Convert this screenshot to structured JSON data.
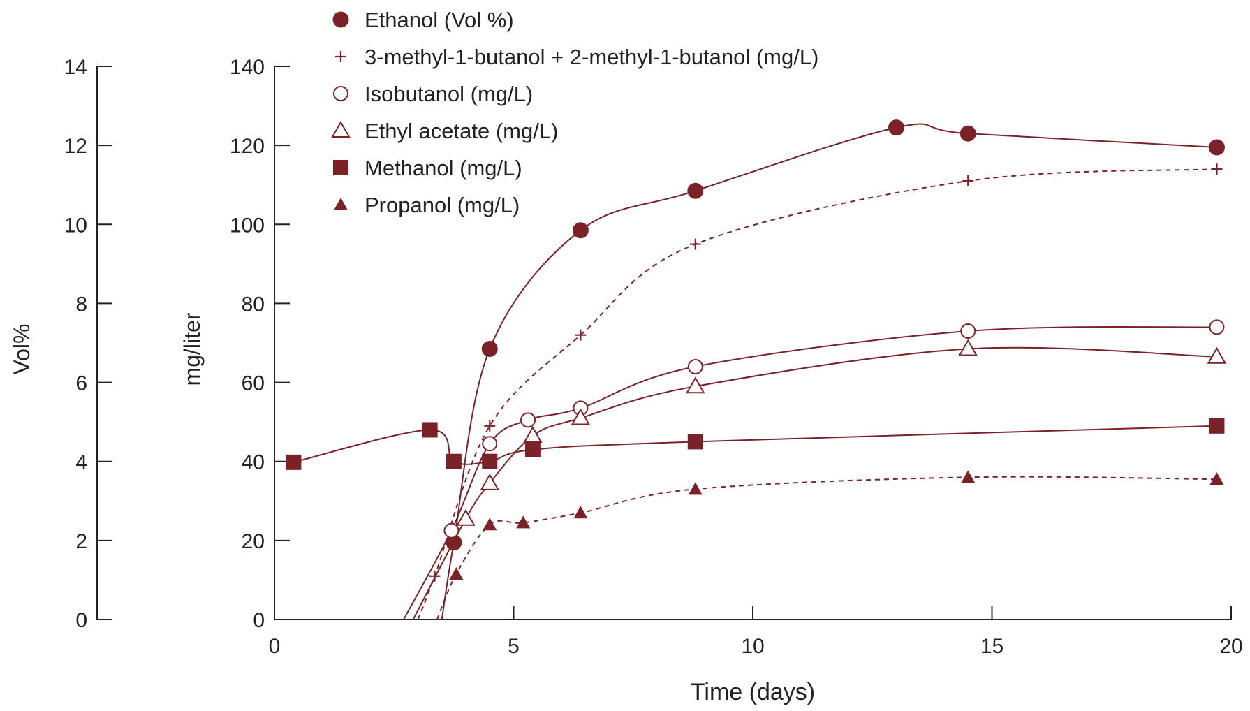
{
  "chart_data": {
    "type": "line",
    "xlabel": "Time (days)",
    "xlim": [
      0,
      20
    ],
    "xticks": [
      0,
      5,
      10,
      15,
      20
    ],
    "y_left": {
      "label": "Vol%",
      "lim": [
        0,
        14
      ],
      "ticks": [
        0,
        2,
        4,
        6,
        8,
        10,
        12,
        14
      ]
    },
    "y_right": {
      "label": "mg/liter",
      "lim": [
        0,
        140
      ],
      "ticks": [
        0,
        20,
        40,
        60,
        80,
        100,
        120,
        140
      ]
    },
    "legend_placement": "top-center",
    "color": "#7a2227",
    "series": [
      {
        "name": "Ethanol (Vol %)",
        "axis": "left",
        "marker": "circle-filled",
        "line": "solid",
        "points": [
          [
            3.75,
            1.95
          ],
          [
            4.5,
            6.85
          ],
          [
            6.4,
            9.85
          ],
          [
            8.8,
            10.85
          ],
          [
            13.0,
            12.45
          ],
          [
            14.5,
            12.3
          ],
          [
            19.7,
            11.95
          ]
        ],
        "curve_start": [
          3.5,
          0
        ]
      },
      {
        "name": "3-methyl-1-butanol + 2-methyl-1-butanol (mg/L)",
        "axis": "right",
        "marker": "plus",
        "line": "dashed",
        "points": [
          [
            3.35,
            11.0
          ],
          [
            4.5,
            49.0
          ],
          [
            6.4,
            72.0
          ],
          [
            8.8,
            95.0
          ],
          [
            14.5,
            111.0
          ],
          [
            19.7,
            114.0
          ]
        ],
        "curve_start": [
          3.0,
          0
        ]
      },
      {
        "name": "Isobutanol (mg/L)",
        "axis": "right",
        "marker": "circle-open",
        "line": "solid",
        "points": [
          [
            3.7,
            22.5
          ],
          [
            4.5,
            44.5
          ],
          [
            5.3,
            50.5
          ],
          [
            6.4,
            53.5
          ],
          [
            8.8,
            64.0
          ],
          [
            14.5,
            73.0
          ],
          [
            19.7,
            74.0
          ]
        ],
        "curve_start": [
          2.7,
          0
        ]
      },
      {
        "name": "Ethyl acetate (mg/L)",
        "axis": "right",
        "marker": "triangle-open",
        "line": "solid",
        "points": [
          [
            4.0,
            25.5
          ],
          [
            4.5,
            34.5
          ],
          [
            5.4,
            46.5
          ],
          [
            6.4,
            51.0
          ],
          [
            8.8,
            59.0
          ],
          [
            14.5,
            68.5
          ],
          [
            19.7,
            66.5
          ]
        ],
        "curve_start": [
          2.9,
          0
        ]
      },
      {
        "name": "Methanol (mg/L)",
        "axis": "right",
        "marker": "square-filled",
        "line": "solid",
        "points": [
          [
            0.4,
            39.8
          ],
          [
            3.25,
            48.0
          ],
          [
            3.75,
            40.0
          ],
          [
            4.5,
            40.0
          ],
          [
            5.4,
            43.0
          ],
          [
            8.8,
            45.0
          ],
          [
            19.7,
            49.0
          ]
        ]
      },
      {
        "name": "Propanol (mg/L)",
        "axis": "right",
        "marker": "triangle-filled",
        "line": "dashed",
        "points": [
          [
            3.8,
            11.5
          ],
          [
            4.5,
            24.0
          ],
          [
            5.2,
            24.5
          ],
          [
            6.4,
            27.0
          ],
          [
            8.8,
            33.0
          ],
          [
            14.5,
            36.0
          ],
          [
            19.7,
            35.5
          ]
        ],
        "curve_start": [
          3.4,
          0
        ]
      }
    ]
  }
}
